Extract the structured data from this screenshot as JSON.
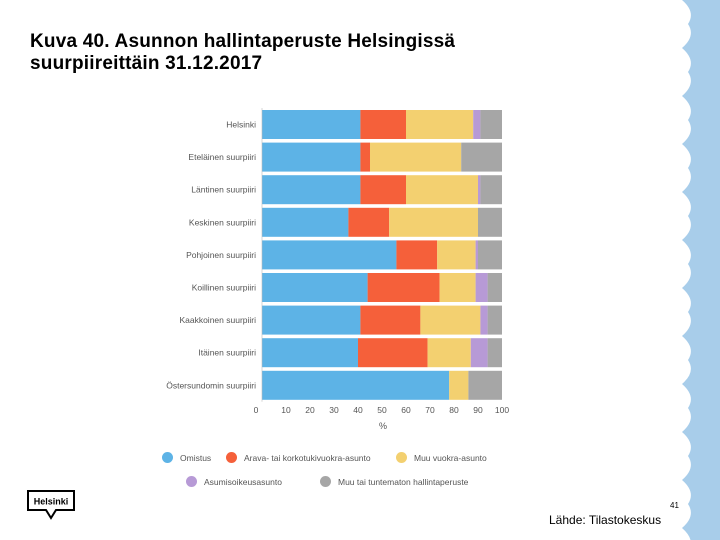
{
  "slide": {
    "title_line1": "Kuva 40. Asunnon hallintaperuste Helsingissä",
    "title_line2": "suurpiireittäin 31.12.2017",
    "page_number": "41",
    "source": "Lähde: Tilastokeskus",
    "logo_text": "Helsinki",
    "wave_color": "#a8cdea"
  },
  "chart_data": {
    "type": "bar",
    "orientation": "horizontal",
    "stacked": true,
    "title": "",
    "xlabel": "%",
    "ylabel": "",
    "xlim": [
      0,
      100
    ],
    "xticks": [
      "0",
      "10",
      "20",
      "30",
      "40",
      "50",
      "60",
      "70",
      "80",
      "90",
      "100"
    ],
    "categories": [
      "Helsinki",
      "Eteläinen suurpiiri",
      "Läntinen suurpiiri",
      "Keskinen suurpiiri",
      "Pohjoinen suurpiiri",
      "Koillinen suurpiiri",
      "Kaakkoinen suurpiiri",
      "Itäinen suurpiiri",
      "Östersundomin suurpiiri"
    ],
    "series": [
      {
        "name": "Omistus",
        "color": "#5db3e6",
        "values": [
          41,
          41,
          41,
          36,
          56,
          44,
          41,
          40,
          78
        ]
      },
      {
        "name": "Arava- tai korkotukivuokra-asunto",
        "color": "#f5603a",
        "values": [
          19,
          4,
          19,
          17,
          17,
          30,
          25,
          29,
          0
        ]
      },
      {
        "name": "Muu vuokra-asunto",
        "color": "#f3d070",
        "values": [
          28,
          38,
          30,
          37,
          16,
          15,
          25,
          18,
          8
        ]
      },
      {
        "name": "Asumisoikeusasunto",
        "color": "#b79ad6",
        "values": [
          3,
          0,
          1,
          0,
          1,
          5,
          3,
          7,
          0
        ]
      },
      {
        "name": "Muu tai tuntematon hallintaperuste",
        "color": "#a6a6a6",
        "values": [
          9,
          17,
          9,
          10,
          10,
          6,
          6,
          6,
          14
        ]
      }
    ],
    "legend_position": "bottom"
  }
}
